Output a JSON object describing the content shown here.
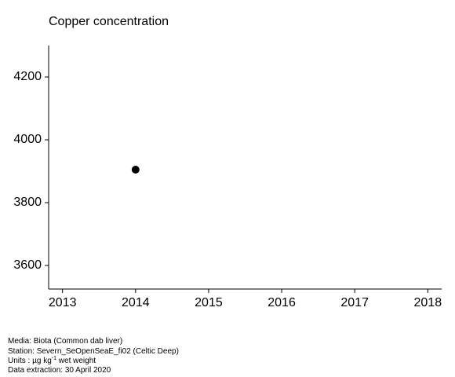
{
  "chart_data": {
    "type": "scatter",
    "title": "Copper concentration",
    "x": [
      2014
    ],
    "values": [
      3905
    ],
    "color": "#000000",
    "xlim": [
      2012.81,
      2018.19
    ],
    "xticks": [
      2013,
      2014,
      2015,
      2016,
      2017,
      2018
    ],
    "ylim": [
      3525,
      4300
    ],
    "yticks": [
      3600,
      3800,
      4000,
      4200
    ],
    "footer": {
      "media": "Media: Biota (Common dab liver)",
      "station": "Station: Severn_SeOpenSeaE_fi02 (Celtic Deep)",
      "units": "Units :  µg kg",
      "units_sup": "-1",
      "units_rest": " wet weight",
      "extraction": "Data extraction: 30 April 2020"
    }
  }
}
